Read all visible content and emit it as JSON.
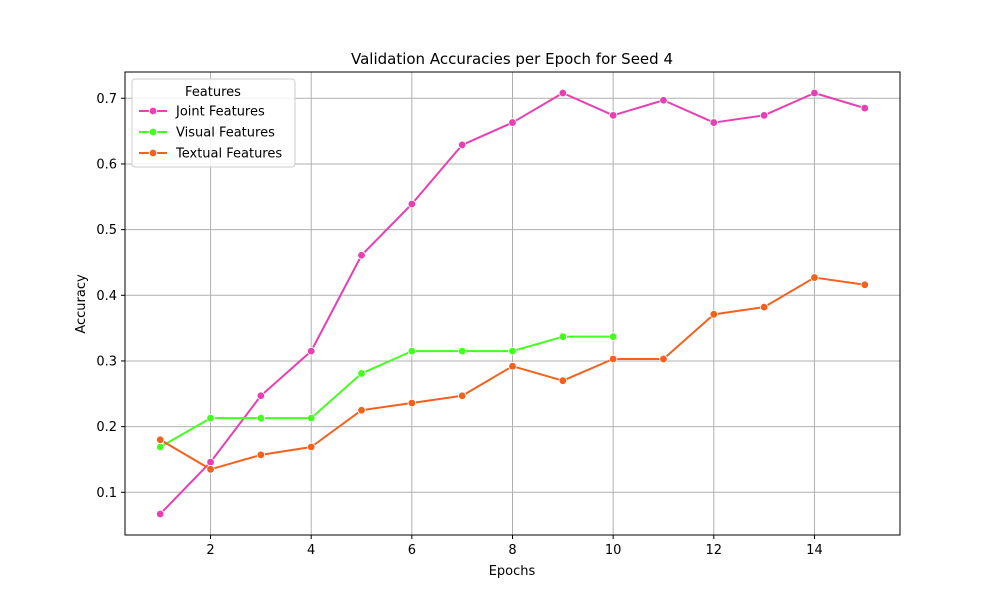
{
  "chart_data": {
    "type": "line",
    "title": "Validation Accuracies per Epoch for Seed 4",
    "xlabel": "Epochs",
    "ylabel": "Accuracy",
    "xlim": [
      0.3,
      15.7
    ],
    "ylim": [
      0.035,
      0.74
    ],
    "xticks": [
      2,
      4,
      6,
      8,
      10,
      12,
      14
    ],
    "yticks": [
      0.1,
      0.2,
      0.3,
      0.4,
      0.5,
      0.6,
      0.7
    ],
    "grid": true,
    "legend": {
      "title": "Features",
      "placement": "top-left"
    },
    "series": [
      {
        "name": "Joint Features",
        "color": "#e83fb4",
        "x": [
          1,
          2,
          3,
          4,
          5,
          6,
          7,
          8,
          9,
          10,
          11,
          12,
          13,
          14,
          15
        ],
        "values": [
          0.067,
          0.146,
          0.247,
          0.315,
          0.461,
          0.539,
          0.629,
          0.663,
          0.708,
          0.674,
          0.697,
          0.663,
          0.674,
          0.708,
          0.685
        ]
      },
      {
        "name": "Visual Features",
        "color": "#44ff1f",
        "x": [
          1,
          2,
          3,
          4,
          5,
          6,
          7,
          8,
          9,
          10
        ],
        "values": [
          0.169,
          0.213,
          0.213,
          0.213,
          0.281,
          0.315,
          0.315,
          0.315,
          0.337,
          0.337
        ]
      },
      {
        "name": "Textual Features",
        "color": "#f4611d",
        "x": [
          1,
          2,
          3,
          4,
          5,
          6,
          7,
          8,
          9,
          10,
          11,
          12,
          13,
          14,
          15
        ],
        "values": [
          0.18,
          0.135,
          0.157,
          0.169,
          0.225,
          0.236,
          0.247,
          0.292,
          0.27,
          0.303,
          0.303,
          0.371,
          0.382,
          0.427,
          0.416
        ]
      }
    ]
  }
}
